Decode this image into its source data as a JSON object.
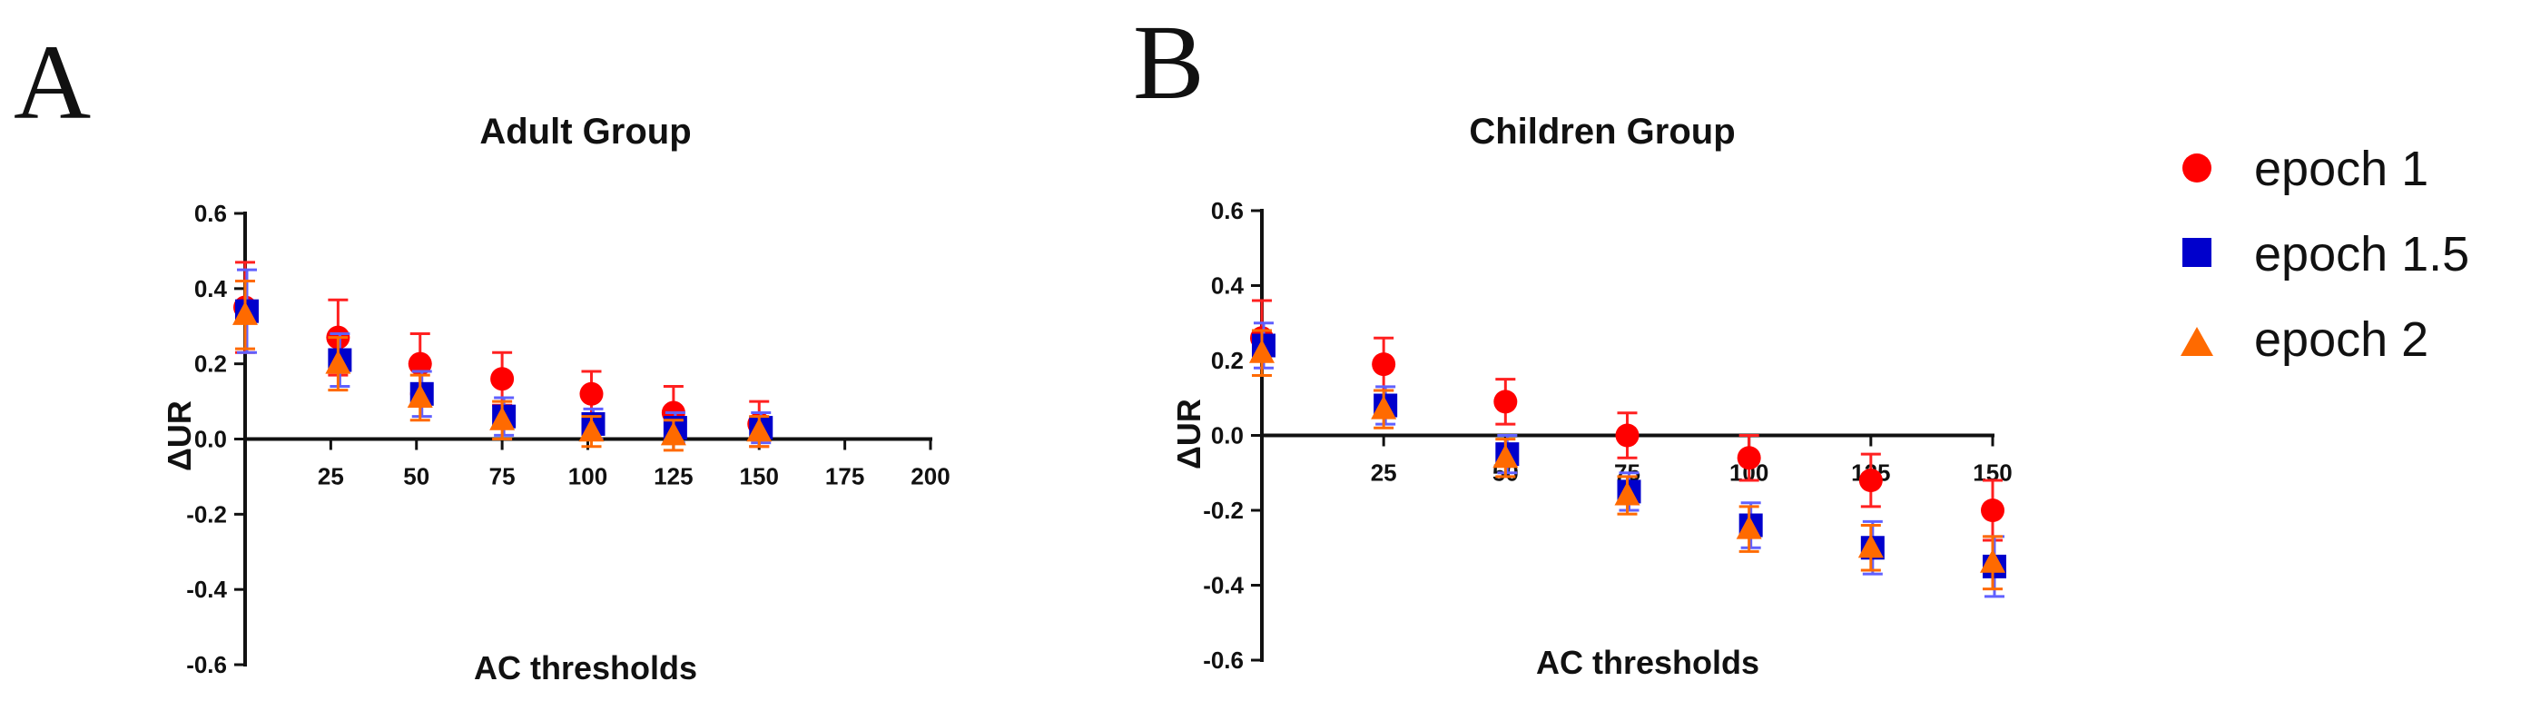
{
  "panels": [
    {
      "letter": "A",
      "title": "Adult Group",
      "xlabel": "AC thresholds",
      "ylabel": "ΔUR",
      "xlim": [
        0,
        200
      ],
      "ylim": [
        -0.6,
        0.6
      ],
      "xticks": [
        25,
        50,
        75,
        100,
        125,
        150,
        175,
        200
      ],
      "yticks": [
        0.6,
        0.4,
        0.2,
        0.0,
        -0.2,
        -0.4,
        -0.6
      ],
      "ytick_labels": [
        "0.6",
        "0.4",
        "0.2",
        "0.0",
        "-0.2",
        "-0.4",
        "-0.6"
      ]
    },
    {
      "letter": "B",
      "title": "Children Group",
      "xlabel": "AC thresholds",
      "ylabel": "ΔUR",
      "xlim": [
        0,
        150
      ],
      "ylim": [
        -0.6,
        0.6
      ],
      "xticks": [
        25,
        50,
        75,
        100,
        125,
        150
      ],
      "yticks": [
        0.6,
        0.4,
        0.2,
        0.0,
        -0.2,
        -0.4,
        -0.6
      ],
      "ytick_labels": [
        "0.6",
        "0.4",
        "0.2",
        "0.0",
        "-0.2",
        "-0.4",
        "-0.6"
      ]
    }
  ],
  "legend": [
    {
      "label": "epoch 1",
      "marker": "circle",
      "color": "#ff0000"
    },
    {
      "label": "epoch 1.5",
      "marker": "square",
      "color": "#0000cc"
    },
    {
      "label": "epoch 2",
      "marker": "triangle",
      "color": "#ff6a00"
    }
  ],
  "chart_data": [
    {
      "type": "scatter",
      "title": "Adult Group",
      "xlabel": "AC thresholds",
      "ylabel": "ΔUR",
      "xlim": [
        0,
        200
      ],
      "ylim": [
        -0.6,
        0.6
      ],
      "grid": false,
      "legend_position": "right",
      "x": [
        0,
        25,
        50,
        75,
        100,
        125,
        150
      ],
      "series": [
        {
          "name": "epoch 1",
          "values": [
            0.33,
            0.2,
            0.11,
            0.05,
            0.02,
            0.01,
            0.02
          ],
          "error": [
            0.09,
            0.07,
            0.06,
            0.05,
            0.04,
            0.04,
            0.04
          ]
        },
        {
          "name": "epoch 1.5",
          "values": [
            0.34,
            0.21,
            0.12,
            0.06,
            0.04,
            0.03,
            0.03
          ],
          "error": [
            0.11,
            0.07,
            0.06,
            0.05,
            0.04,
            0.04,
            0.04
          ]
        },
        {
          "name": "epoch 2",
          "values": [
            0.35,
            0.27,
            0.2,
            0.16,
            0.12,
            0.07,
            0.04
          ],
          "error": [
            0.12,
            0.1,
            0.08,
            0.07,
            0.06,
            0.07,
            0.06
          ]
        }
      ]
    },
    {
      "type": "scatter",
      "title": "Children Group",
      "xlabel": "AC thresholds",
      "ylabel": "ΔUR",
      "xlim": [
        0,
        150
      ],
      "ylim": [
        -0.6,
        0.6
      ],
      "grid": false,
      "legend_position": "right",
      "x": [
        0,
        25,
        50,
        75,
        100,
        125,
        150
      ],
      "series": [
        {
          "name": "epoch 1",
          "values": [
            0.22,
            0.07,
            -0.06,
            -0.16,
            -0.25,
            -0.3,
            -0.34
          ],
          "error": [
            0.06,
            0.05,
            0.05,
            0.05,
            0.06,
            0.06,
            0.07
          ]
        },
        {
          "name": "epoch 1.5",
          "values": [
            0.24,
            0.08,
            -0.05,
            -0.15,
            -0.24,
            -0.3,
            -0.35
          ],
          "error": [
            0.06,
            0.05,
            0.05,
            0.05,
            0.06,
            0.07,
            0.08
          ]
        },
        {
          "name": "epoch 2",
          "values": [
            0.26,
            0.19,
            0.09,
            0.0,
            -0.06,
            -0.12,
            -0.2
          ],
          "error": [
            0.1,
            0.07,
            0.06,
            0.06,
            0.06,
            0.07,
            0.08
          ]
        }
      ]
    }
  ]
}
